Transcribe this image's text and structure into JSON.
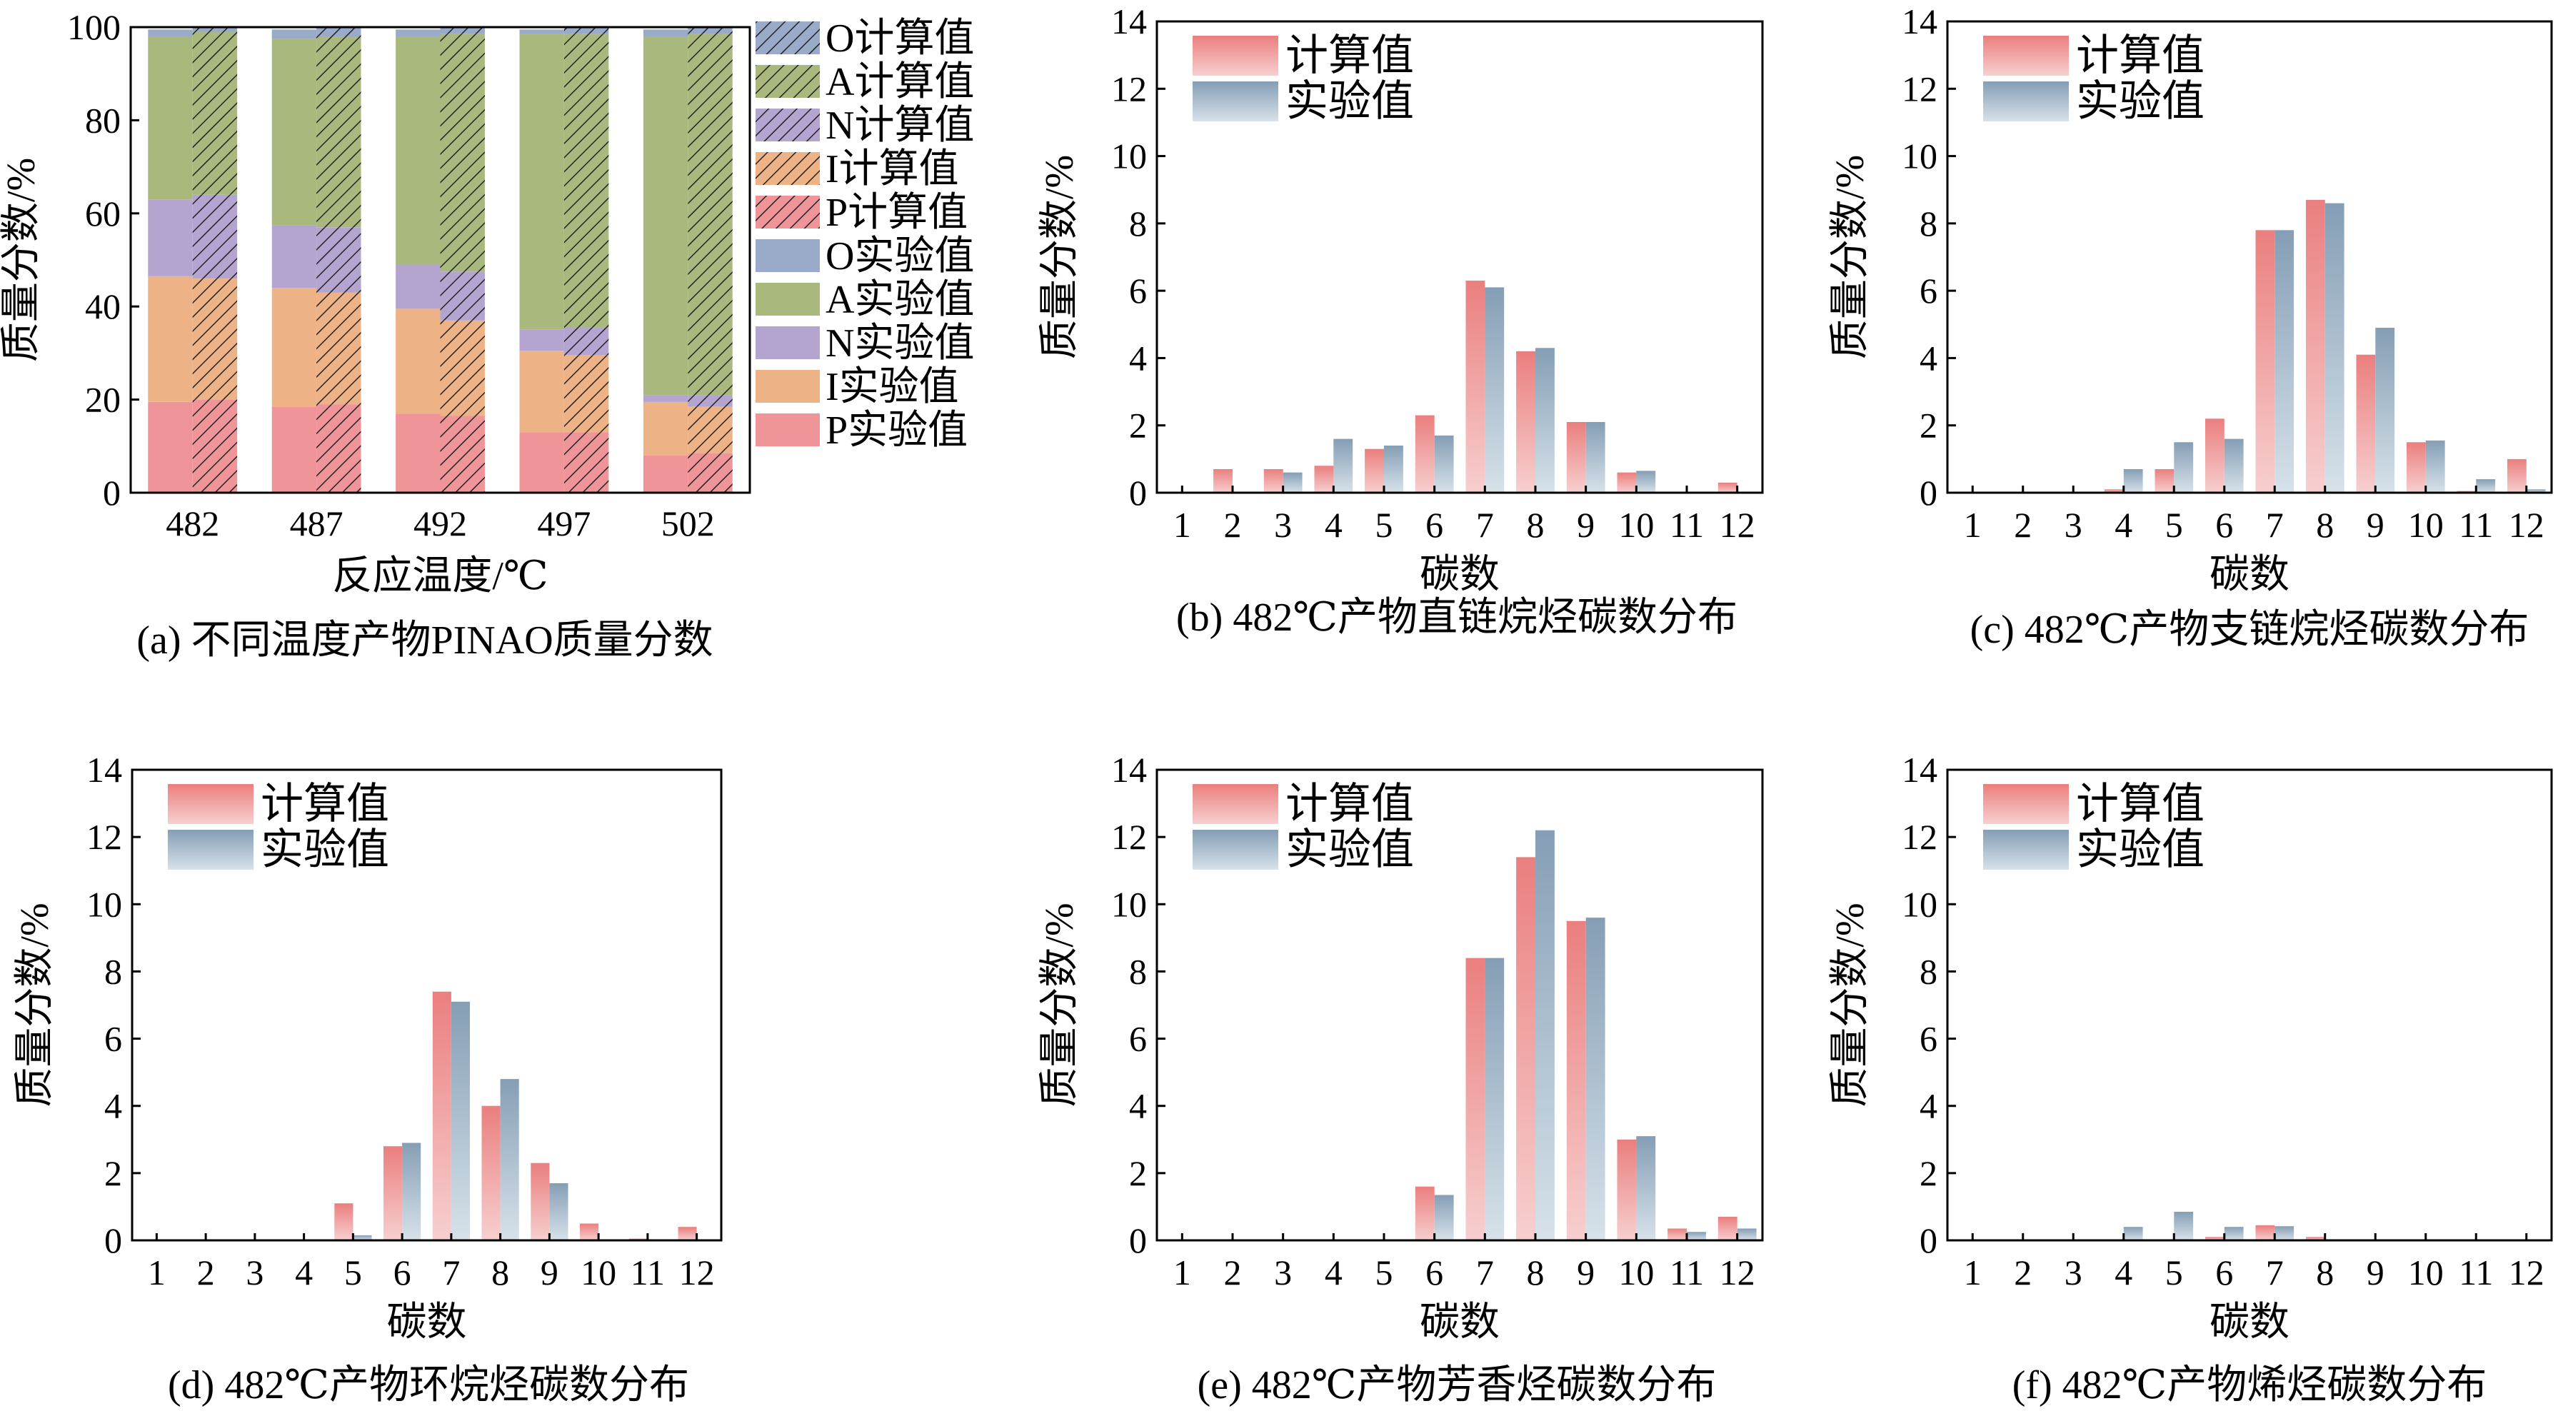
{
  "colors": {
    "calc_top": "#ea7f7e",
    "calc_bottom": "#f7cfcf",
    "exp_top": "#859eb5",
    "exp_bottom": "#d7e2ea",
    "stack_P": "#ef959a",
    "stack_I": "#eeb287",
    "stack_N": "#b3a5d0",
    "stack_A": "#a9b97e",
    "stack_O": "#9aaac9",
    "hatch": "#222222"
  },
  "chart_data": [
    {
      "id": "a",
      "type": "bar",
      "subtype": "stacked",
      "caption": "(a) 不同温度产物PINAO质量分数",
      "categories": [
        "482",
        "487",
        "492",
        "497",
        "502"
      ],
      "xlabel": "反应温度/℃",
      "ylabel": "质量分数/%",
      "ylim": [
        0,
        100
      ],
      "yticks": [
        0,
        20,
        40,
        60,
        80,
        100
      ],
      "stack_order": [
        "P",
        "I",
        "N",
        "A",
        "O"
      ],
      "series": [
        {
          "name": "P实验值",
          "component": "P",
          "kind": "experimental",
          "values": [
            19.5,
            18.5,
            17,
            13,
            8
          ]
        },
        {
          "name": "I实验值",
          "component": "I",
          "kind": "experimental",
          "values": [
            27,
            25.5,
            22.5,
            17.5,
            11.5
          ]
        },
        {
          "name": "N实验值",
          "component": "N",
          "kind": "experimental",
          "values": [
            16.5,
            13.5,
            9.5,
            4.5,
            1.5
          ]
        },
        {
          "name": "A实验值",
          "component": "A",
          "kind": "experimental",
          "values": [
            35,
            40,
            49,
            63.5,
            77
          ]
        },
        {
          "name": "O实验值",
          "component": "O",
          "kind": "experimental",
          "values": [
            1.5,
            2,
            1.5,
            1,
            1.5
          ]
        },
        {
          "name": "P计算值",
          "component": "P",
          "kind": "calculated",
          "values": [
            20,
            19,
            16.5,
            13,
            8.5
          ]
        },
        {
          "name": "I计算值",
          "component": "I",
          "kind": "calculated",
          "values": [
            26,
            24,
            20.5,
            16.5,
            10
          ]
        },
        {
          "name": "N计算值",
          "component": "N",
          "kind": "calculated",
          "values": [
            18,
            14,
            10.5,
            6,
            2.5
          ]
        },
        {
          "name": "A计算值",
          "component": "A",
          "kind": "calculated",
          "values": [
            35,
            41,
            51,
            63,
            77.5
          ]
        },
        {
          "name": "O计算值",
          "component": "O",
          "kind": "calculated",
          "values": [
            1,
            2,
            1.5,
            1.5,
            1.5
          ]
        }
      ],
      "legend": [
        "O计算值",
        "A计算值",
        "N计算值",
        "I计算值",
        "P计算值",
        "O实验值",
        "A实验值",
        "N实验值",
        "I实验值",
        "P实验值"
      ],
      "legend_position": "right"
    },
    {
      "id": "b",
      "type": "bar",
      "caption": "(b) 482℃产物直链烷烃碳数分布",
      "categories": [
        "1",
        "2",
        "3",
        "4",
        "5",
        "6",
        "7",
        "8",
        "9",
        "10",
        "11",
        "12"
      ],
      "xlabel": "碳数",
      "ylabel": "质量分数/%",
      "ylim": [
        0,
        14
      ],
      "yticks": [
        0,
        2,
        4,
        6,
        8,
        10,
        12,
        14
      ],
      "series": [
        {
          "name": "计算值",
          "values": [
            0,
            0.7,
            0.7,
            0.8,
            1.3,
            2.3,
            6.3,
            4.2,
            2.1,
            0.6,
            0,
            0.3
          ]
        },
        {
          "name": "实验值",
          "values": [
            0,
            0,
            0.6,
            1.6,
            1.4,
            1.7,
            6.1,
            4.3,
            2.1,
            0.65,
            0,
            0
          ]
        }
      ],
      "legend_position": "top-left"
    },
    {
      "id": "c",
      "type": "bar",
      "caption": "(c) 482℃产物支链烷烃碳数分布",
      "categories": [
        "1",
        "2",
        "3",
        "4",
        "5",
        "6",
        "7",
        "8",
        "9",
        "10",
        "11",
        "12"
      ],
      "xlabel": "碳数",
      "ylabel": "质量分数/%",
      "ylim": [
        0,
        14
      ],
      "yticks": [
        0,
        2,
        4,
        6,
        8,
        10,
        12,
        14
      ],
      "series": [
        {
          "name": "计算值",
          "values": [
            0,
            0,
            0,
            0.1,
            0.7,
            2.2,
            7.8,
            8.7,
            4.1,
            1.5,
            0.05,
            1.0
          ]
        },
        {
          "name": "实验值",
          "values": [
            0,
            0,
            0,
            0.7,
            1.5,
            1.6,
            7.8,
            8.6,
            4.9,
            1.55,
            0.4,
            0.1
          ]
        }
      ],
      "legend_position": "top-left"
    },
    {
      "id": "d",
      "type": "bar",
      "caption": "(d) 482℃产物环烷烃碳数分布",
      "categories": [
        "1",
        "2",
        "3",
        "4",
        "5",
        "6",
        "7",
        "8",
        "9",
        "10",
        "11",
        "12"
      ],
      "xlabel": "碳数",
      "ylabel": "质量分数/%",
      "ylim": [
        0,
        14
      ],
      "yticks": [
        0,
        2,
        4,
        6,
        8,
        10,
        12,
        14
      ],
      "series": [
        {
          "name": "计算值",
          "values": [
            0,
            0,
            0,
            0,
            1.1,
            2.8,
            7.4,
            4.0,
            2.3,
            0.5,
            0.05,
            0.4
          ]
        },
        {
          "name": "实验值",
          "values": [
            0,
            0,
            0,
            0,
            0.15,
            2.9,
            7.1,
            4.8,
            1.7,
            0,
            0,
            0
          ]
        }
      ],
      "legend_position": "top-left"
    },
    {
      "id": "e",
      "type": "bar",
      "caption": "(e) 482℃产物芳香烃碳数分布",
      "categories": [
        "1",
        "2",
        "3",
        "4",
        "5",
        "6",
        "7",
        "8",
        "9",
        "10",
        "11",
        "12"
      ],
      "xlabel": "碳数",
      "ylabel": "质量分数/%",
      "ylim": [
        0,
        14
      ],
      "yticks": [
        0,
        2,
        4,
        6,
        8,
        10,
        12,
        14
      ],
      "series": [
        {
          "name": "计算值",
          "values": [
            0,
            0,
            0,
            0,
            0,
            1.6,
            8.4,
            11.4,
            9.5,
            3.0,
            0.35,
            0.7
          ]
        },
        {
          "name": "实验值",
          "values": [
            0,
            0,
            0,
            0,
            0,
            1.35,
            8.4,
            12.2,
            9.6,
            3.1,
            0.25,
            0.35
          ]
        }
      ],
      "legend_position": "top-left"
    },
    {
      "id": "f",
      "type": "bar",
      "caption": "(f) 482℃产物烯烃碳数分布",
      "categories": [
        "1",
        "2",
        "3",
        "4",
        "5",
        "6",
        "7",
        "8",
        "9",
        "10",
        "11",
        "12"
      ],
      "xlabel": "碳数",
      "ylabel": "质量分数/%",
      "ylim": [
        0,
        14
      ],
      "yticks": [
        0,
        2,
        4,
        6,
        8,
        10,
        12,
        14
      ],
      "series": [
        {
          "name": "计算值",
          "values": [
            0,
            0,
            0.02,
            0,
            0,
            0.1,
            0.45,
            0.1,
            0.02,
            0.02,
            0,
            0
          ]
        },
        {
          "name": "实验值",
          "values": [
            0,
            0,
            0,
            0.4,
            0.85,
            0.4,
            0.42,
            0,
            0,
            0,
            0,
            0
          ]
        }
      ],
      "legend_position": "top-left"
    }
  ]
}
